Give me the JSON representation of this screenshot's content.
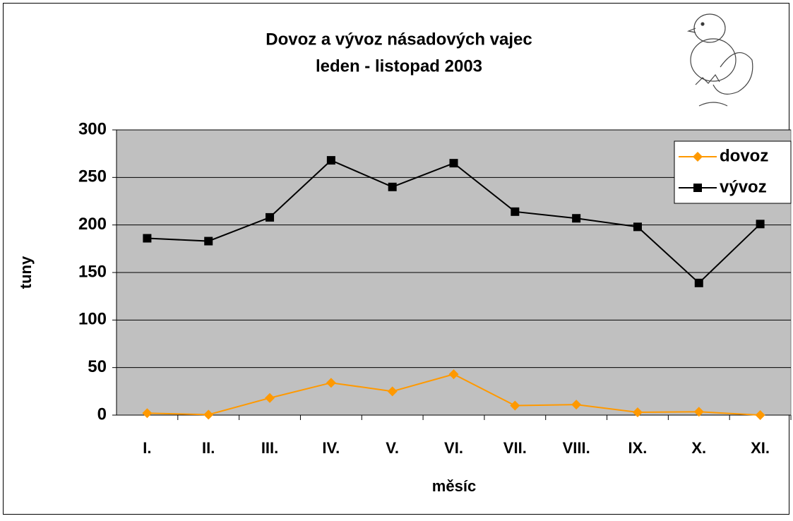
{
  "chart_data": {
    "type": "line",
    "title": [
      "Dovoz a vývoz násadových vajec",
      "leden - listopad 2003"
    ],
    "x_label": "měsíc",
    "y_label": "tuny",
    "categories": [
      "I.",
      "II.",
      "III.",
      "IV.",
      "V.",
      "VI.",
      "VII.",
      "VIII.",
      "IX.",
      "X.",
      "XI."
    ],
    "series": [
      {
        "name": "dovoz",
        "color": "#ff9900",
        "marker": "diamond",
        "values": [
          2,
          0.5,
          18,
          34,
          25,
          43,
          10,
          11,
          3,
          3.5,
          0
        ]
      },
      {
        "name": "vývoz",
        "color": "#000000",
        "marker": "square",
        "values": [
          186,
          183,
          208,
          268,
          240,
          265,
          214,
          207,
          198,
          139,
          201
        ]
      }
    ],
    "ylim": [
      0,
      300
    ],
    "yticks": [
      0,
      50,
      100,
      150,
      200,
      250,
      300
    ],
    "grid": true,
    "legend": "top-right"
  }
}
